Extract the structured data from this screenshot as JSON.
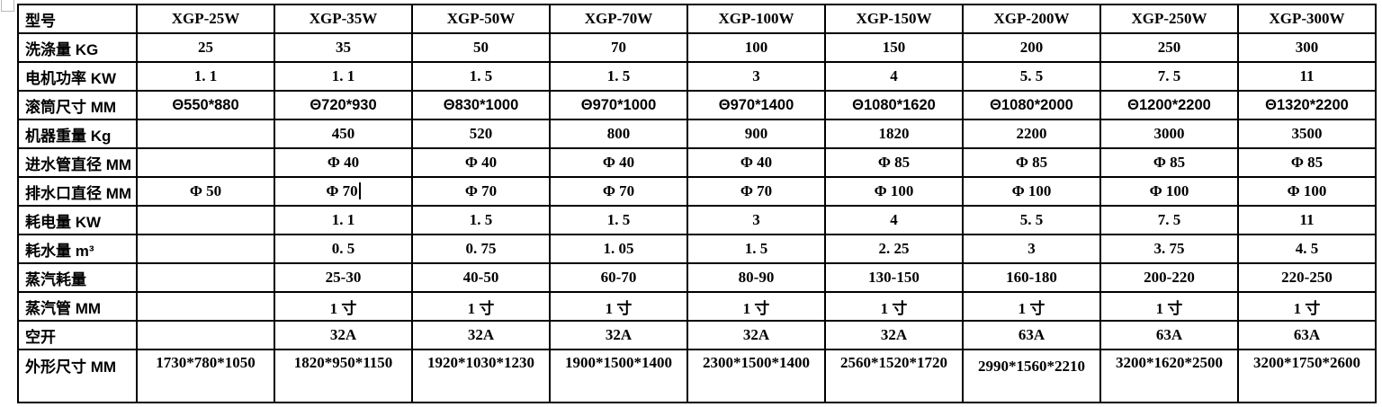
{
  "document": {
    "table": {
      "corner_header": "型号",
      "columns": [
        "XGP-25W",
        "XGP-35W",
        "XGP-50W",
        "XGP-70W",
        "XGP-100W",
        "XGP-150W",
        "XGP-200W",
        "XGP-250W",
        "XGP-300W"
      ],
      "rows": [
        {
          "label": "洗涤量 KG",
          "values": [
            "25",
            "35",
            "50",
            "70",
            "100",
            "150",
            "200",
            "250",
            "300"
          ]
        },
        {
          "label": "电机功率 KW",
          "values": [
            "1. 1",
            "1. 1",
            "1. 5",
            "1. 5",
            "3",
            "4",
            "5. 5",
            "7. 5",
            "11"
          ]
        },
        {
          "label": "滚筒尺寸 MM",
          "values": [
            "Θ550*880",
            "Θ720*930",
            "Θ830*1000",
            "Θ970*1000",
            "Θ970*1400",
            "Θ1080*1620",
            "Θ1080*2000",
            "Θ1200*2200",
            "Θ1320*2200"
          ]
        },
        {
          "label": "机器重量 Kg",
          "values": [
            "",
            "450",
            "520",
            "800",
            "900",
            "1820",
            "2200",
            "3000",
            "3500"
          ]
        },
        {
          "label": "进水管直径 MM",
          "values": [
            "",
            "Φ 40",
            "Φ 40",
            "Φ 40",
            "Φ 40",
            "Φ 85",
            "Φ 85",
            "Φ 85",
            "Φ 85"
          ]
        },
        {
          "label": "排水口直径 MM",
          "values": [
            "Φ 50",
            "Φ 70",
            "Φ 70",
            "Φ 70",
            "Φ 70",
            "Φ 100",
            "Φ 100",
            "Φ 100",
            "Φ 100"
          ]
        },
        {
          "label": "耗电量 KW",
          "values": [
            "",
            "1. 1",
            "1. 5",
            "1. 5",
            "3",
            "4",
            "5. 5",
            "7. 5",
            "11"
          ]
        },
        {
          "label": "耗水量 m³",
          "values": [
            "",
            "0. 5",
            "0. 75",
            "1. 05",
            "1. 5",
            "2. 25",
            "3",
            "3. 75",
            "4. 5"
          ]
        },
        {
          "label": "蒸汽耗量",
          "values": [
            "",
            "25-30",
            "40-50",
            "60-70",
            "80-90",
            "130-150",
            "160-180",
            "200-220",
            "220-250"
          ]
        },
        {
          "label": "蒸汽管 MM",
          "values": [
            "",
            "1 寸",
            "1 寸",
            "1 寸",
            "1 寸",
            "1 寸",
            "1 寸",
            "1 寸",
            "1 寸"
          ]
        },
        {
          "label": "空开",
          "values": [
            "",
            "32A",
            "32A",
            "32A",
            "32A",
            "32A",
            "63A",
            "63A",
            "63A"
          ]
        },
        {
          "label": "外形尺寸 MM",
          "values": [
            "1730*780*1050",
            "1820*950*1150",
            "1920*1030*1230",
            "1900*1500*1400",
            "2300*1500*1400",
            "2560*1520*1720",
            "2990*1560*2210",
            "3200*1620*2500",
            "3200*1750*2600"
          ]
        }
      ]
    },
    "text_cursor": {
      "row_index": 5,
      "col_index": 1
    }
  },
  "colors": {
    "text": "#000000",
    "border": "#000000",
    "background": "#ffffff"
  }
}
